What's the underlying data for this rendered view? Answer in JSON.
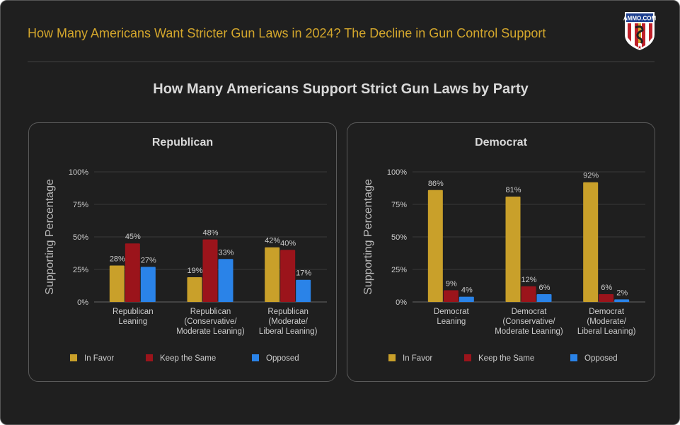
{
  "header": {
    "title": "How Many Americans Want Stricter Gun Laws in 2024? The Decline in Gun Control Support",
    "logo_text": "AMMO.COM"
  },
  "subtitle": "How Many Americans Support Strict Gun Laws by Party",
  "colors": {
    "in_favor": "#c9a02a",
    "keep_same": "#9b141b",
    "opposed": "#2a83e8"
  },
  "chart_data": [
    {
      "type": "bar",
      "title": "Republican",
      "ylabel": "Supporting Percentage",
      "ylim": [
        0,
        100
      ],
      "yticks": [
        "0%",
        "25%",
        "50%",
        "75%",
        "100%"
      ],
      "grid": true,
      "legend": "bottom",
      "categories": [
        [
          "Republican",
          "Leaning"
        ],
        [
          "Republican",
          "(Conservative/",
          "Moderate Leaning)"
        ],
        [
          "Republican",
          "(Moderate/",
          "Liberal Leaning)"
        ]
      ],
      "series": [
        {
          "name": "In Favor",
          "values": [
            28,
            19,
            42
          ]
        },
        {
          "name": "Keep the Same",
          "values": [
            45,
            48,
            40
          ]
        },
        {
          "name": "Opposed",
          "values": [
            27,
            33,
            17
          ]
        }
      ]
    },
    {
      "type": "bar",
      "title": "Democrat",
      "ylabel": "Supporting Percentage",
      "ylim": [
        0,
        100
      ],
      "yticks": [
        "0%",
        "25%",
        "50%",
        "75%",
        "100%"
      ],
      "grid": true,
      "legend": "bottom",
      "categories": [
        [
          "Democrat",
          "Leaning"
        ],
        [
          "Democrat",
          "(Conservative/",
          "Moderate Leaning)"
        ],
        [
          "Democrat",
          "(Moderate/",
          "Liberal Leaning)"
        ]
      ],
      "series": [
        {
          "name": "In Favor",
          "values": [
            86,
            81,
            92
          ]
        },
        {
          "name": "Keep the Same",
          "values": [
            9,
            12,
            6
          ]
        },
        {
          "name": "Opposed",
          "values": [
            4,
            6,
            2
          ]
        }
      ]
    }
  ]
}
